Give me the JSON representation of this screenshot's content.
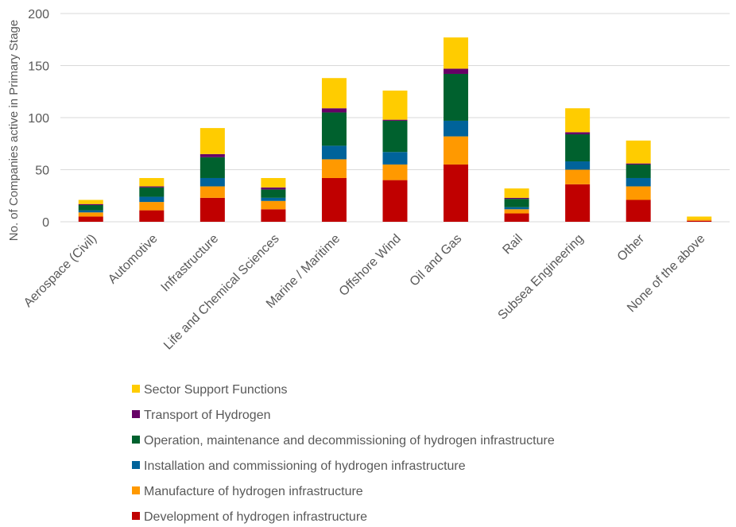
{
  "chart_data": {
    "type": "bar",
    "stacked": true,
    "title": "",
    "xlabel": "",
    "ylabel": "No. of Companies active in Primary Stage",
    "ylim": [
      0,
      200
    ],
    "yticks": [
      0,
      50,
      100,
      150,
      200
    ],
    "grid": true,
    "legend_position": "bottom",
    "categories": [
      "Aerospace (Civil)",
      "Automotive",
      "Infrastructure",
      "Life and Chemical Sciences",
      "Marine / Maritime",
      "Offshore Wind",
      "Oil and Gas",
      "Rail",
      "Subsea Engineering",
      "Other",
      "None of the above"
    ],
    "series": [
      {
        "name": "Development of hydrogen infrastructure",
        "color": "#C00000",
        "values": [
          5,
          11,
          23,
          12,
          42,
          40,
          55,
          8,
          36,
          21,
          1
        ]
      },
      {
        "name": "Manufacture of hydrogen infrastructure",
        "color": "#FF9900",
        "values": [
          4,
          8,
          11,
          8,
          18,
          15,
          27,
          4,
          14,
          13,
          1
        ]
      },
      {
        "name": "Installation and commissioning of hydrogen infrastructure",
        "color": "#00639A",
        "values": [
          2,
          5,
          8,
          3,
          13,
          12,
          15,
          2,
          8,
          8,
          0
        ]
      },
      {
        "name": "Operation, maintenance and decommissioning of hydrogen infrastructure",
        "color": "#00612E",
        "values": [
          5,
          9,
          20,
          8,
          32,
          30,
          45,
          8,
          26,
          13,
          0
        ]
      },
      {
        "name": "Transport of Hydrogen",
        "color": "#660066",
        "values": [
          1,
          1,
          3,
          2,
          4,
          1,
          5,
          1,
          2,
          1,
          0
        ]
      },
      {
        "name": "Sector Support Functions",
        "color": "#FFCC00",
        "values": [
          4,
          8,
          25,
          9,
          29,
          28,
          30,
          9,
          23,
          22,
          3
        ]
      }
    ]
  }
}
